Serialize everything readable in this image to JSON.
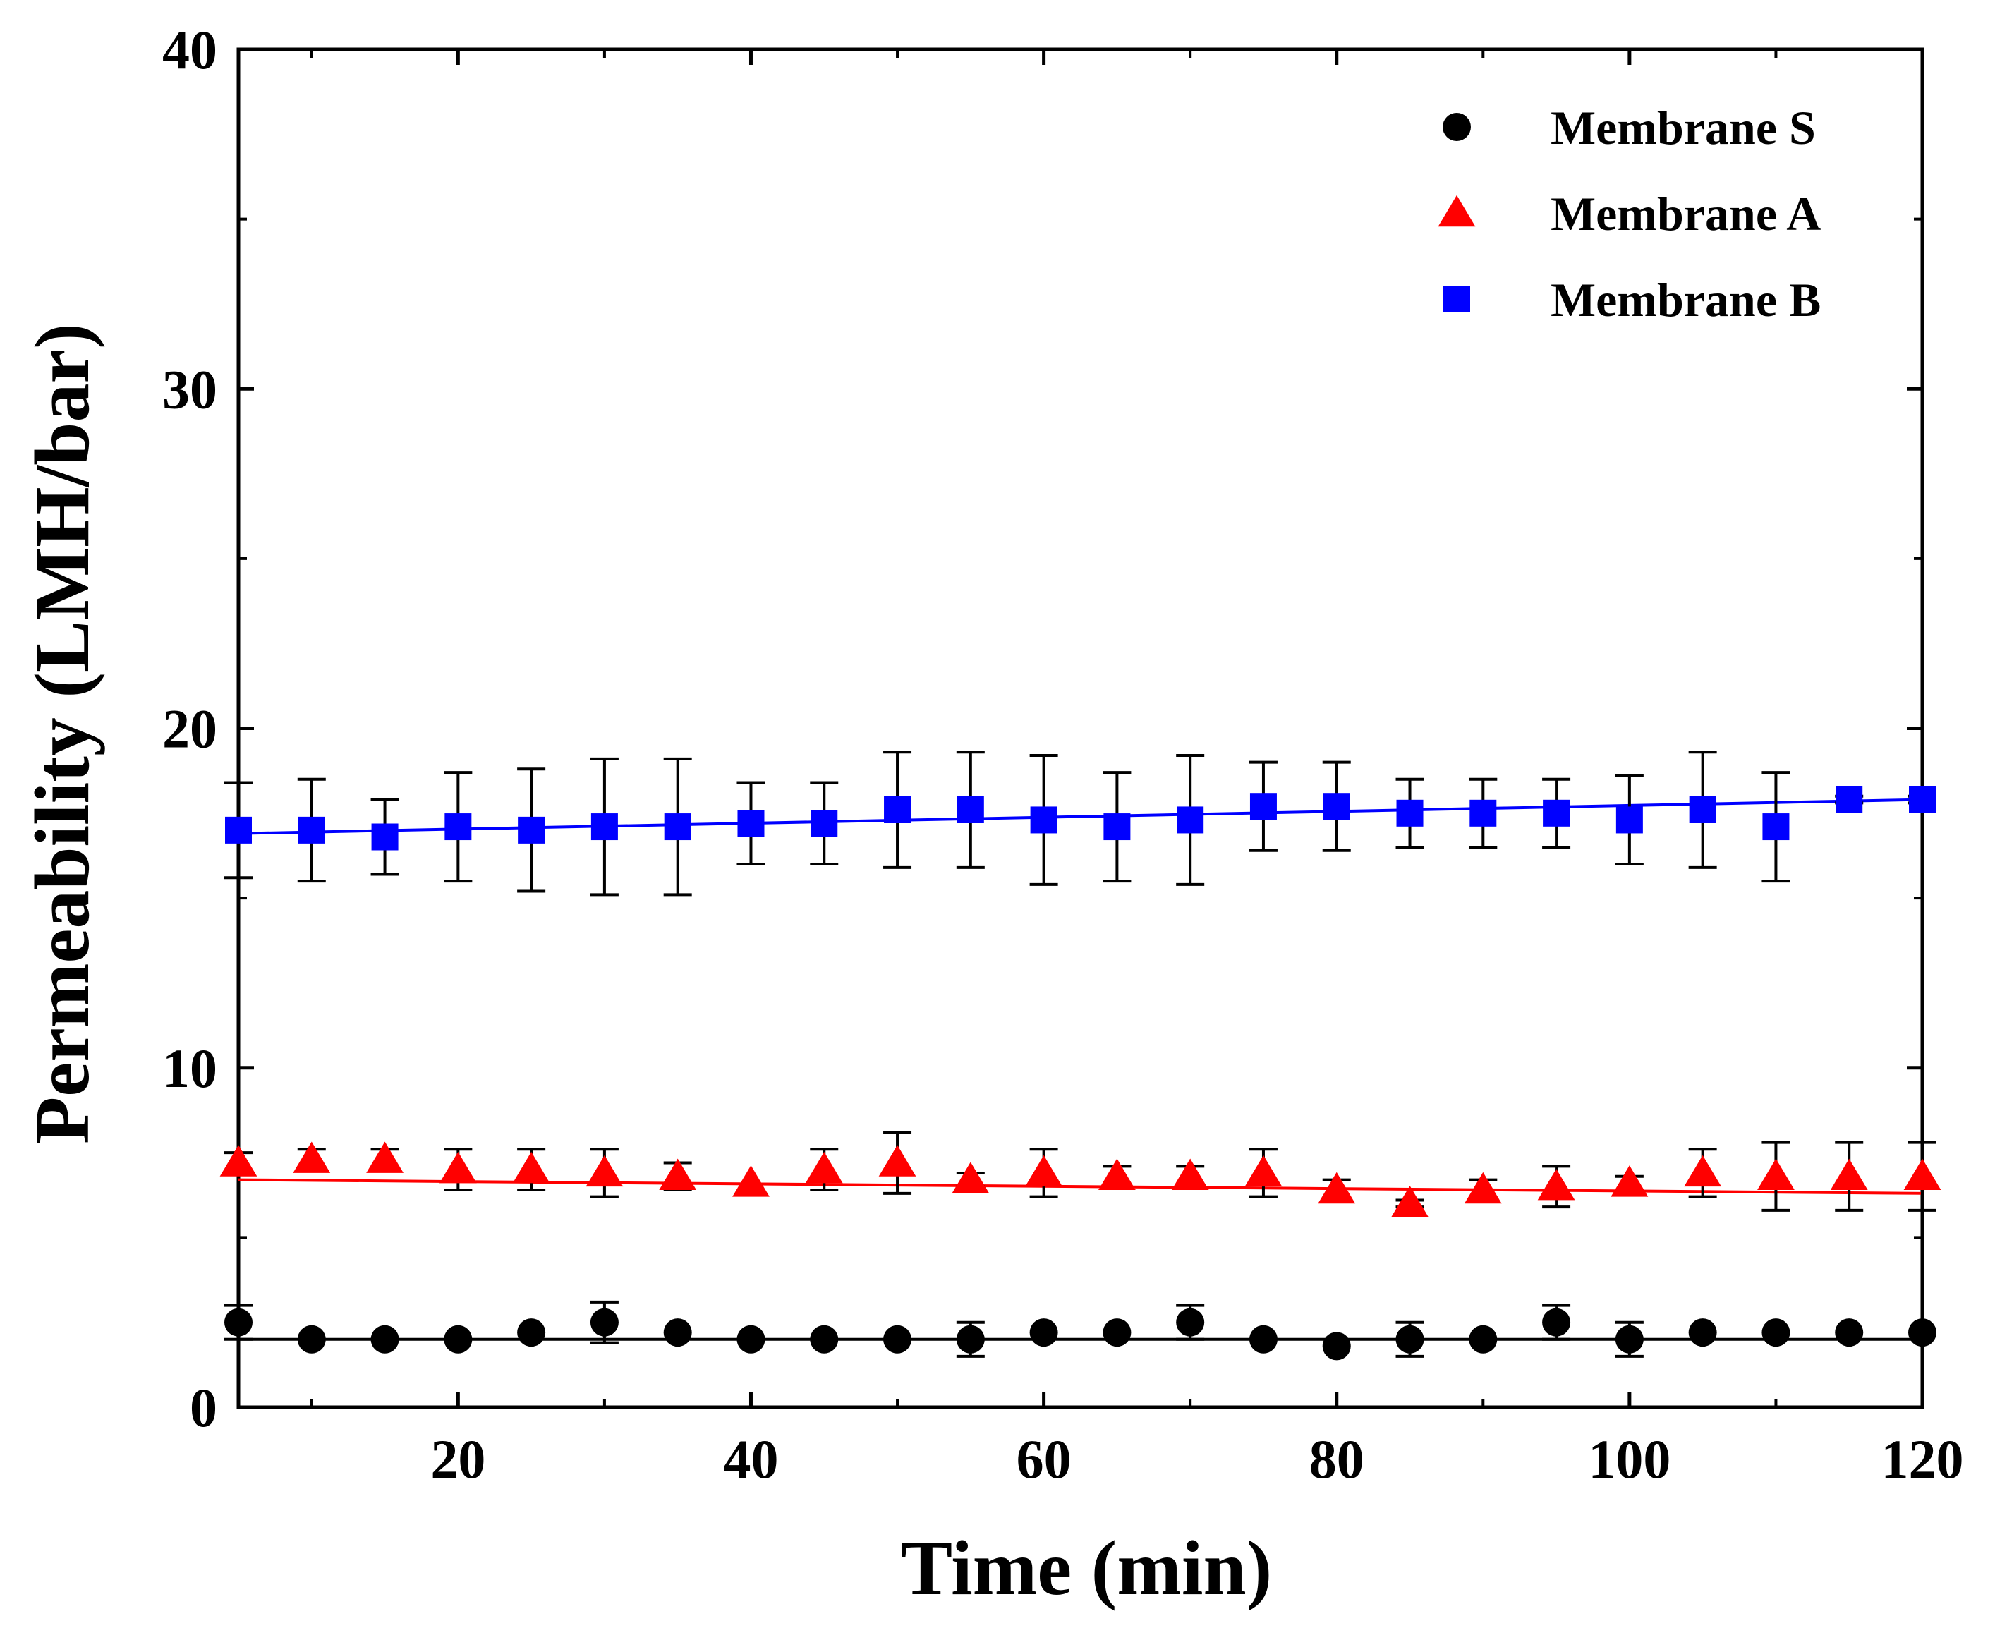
{
  "chart_data": {
    "type": "scatter",
    "title": "",
    "xlabel": "Time (min)",
    "ylabel": "Permeability (LMH/bar)",
    "xlim": [
      5,
      120
    ],
    "ylim": [
      0,
      40
    ],
    "xticks": [
      20,
      40,
      60,
      80,
      100,
      120
    ],
    "yticks": [
      0,
      10,
      20,
      30,
      40
    ],
    "grid": false,
    "legend_position": "top-right",
    "x": [
      5,
      10,
      15,
      20,
      25,
      30,
      35,
      40,
      45,
      50,
      55,
      60,
      65,
      70,
      75,
      80,
      85,
      90,
      95,
      100,
      105,
      110,
      115,
      120
    ],
    "series": [
      {
        "name": "Membrane S",
        "marker": "circle",
        "color": "#000000",
        "values": [
          2.5,
          2.0,
          2.0,
          2.0,
          2.2,
          2.5,
          2.2,
          2.0,
          2.0,
          2.0,
          2.0,
          2.2,
          2.2,
          2.5,
          2.0,
          1.8,
          2.0,
          2.0,
          2.5,
          2.0,
          2.2,
          2.2,
          2.2,
          2.2
        ],
        "errors": [
          0.5,
          0,
          0,
          0,
          0,
          0.6,
          0,
          0,
          0,
          0,
          0.5,
          0,
          0,
          0.5,
          0,
          0,
          0.5,
          0,
          0.5,
          0.5,
          0,
          0,
          0,
          0
        ],
        "fit": [
          2.0,
          2.0
        ]
      },
      {
        "name": "Membrane A",
        "marker": "triangle",
        "color": "#ff0000",
        "values": [
          7.2,
          7.3,
          7.3,
          7.0,
          7.0,
          6.9,
          6.8,
          6.6,
          7.0,
          7.2,
          6.7,
          6.9,
          6.8,
          6.8,
          6.9,
          6.4,
          6.0,
          6.4,
          6.5,
          6.6,
          6.9,
          6.8,
          6.8,
          6.8
        ],
        "errors": [
          0.3,
          0.3,
          0.3,
          0.6,
          0.6,
          0.7,
          0.4,
          0,
          0.6,
          0.9,
          0.2,
          0.7,
          0.3,
          0.3,
          0.7,
          0.3,
          0.1,
          0.3,
          0.6,
          0.2,
          0.7,
          1.0,
          1.0,
          1.0
        ],
        "fit": [
          6.7,
          6.3
        ]
      },
      {
        "name": "Membrane B",
        "marker": "square",
        "color": "#0000ff",
        "values": [
          17.0,
          17.0,
          16.8,
          17.1,
          17.0,
          17.1,
          17.1,
          17.2,
          17.2,
          17.6,
          17.6,
          17.3,
          17.1,
          17.3,
          17.7,
          17.7,
          17.5,
          17.5,
          17.5,
          17.3,
          17.6,
          17.1,
          17.9,
          17.9
        ],
        "errors": [
          1.4,
          1.5,
          1.1,
          1.6,
          1.8,
          2.0,
          2.0,
          1.2,
          1.2,
          1.7,
          1.7,
          1.9,
          1.6,
          1.9,
          1.3,
          1.3,
          1.0,
          1.0,
          1.0,
          1.3,
          1.7,
          1.6,
          0.1,
          0.1
        ],
        "fit": [
          16.9,
          17.9
        ]
      }
    ]
  }
}
